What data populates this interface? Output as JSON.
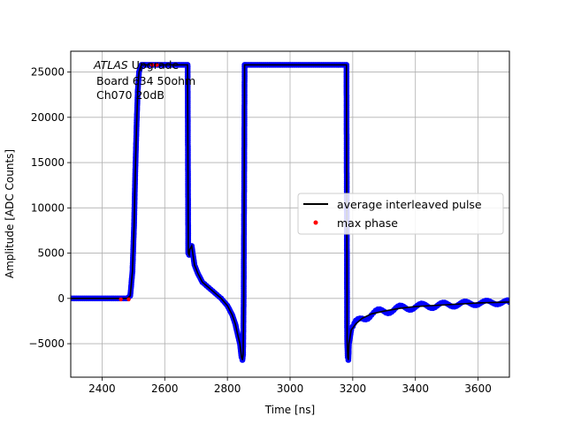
{
  "chart_data": {
    "type": "scatter",
    "title": "",
    "xlabel": "Time [ns]",
    "ylabel": "Amplitude [ADC Counts]",
    "xlim": [
      2300,
      3700
    ],
    "ylim": [
      -8700,
      27300
    ],
    "grid": true,
    "x_ticks": [
      2400,
      2600,
      2800,
      3000,
      3200,
      3400,
      3600
    ],
    "y_ticks": [
      -5000,
      0,
      5000,
      10000,
      15000,
      20000,
      25000
    ],
    "annotations": {
      "italic": "ATLAS",
      "after_italic": " Upgrade",
      "line2": "Board 634 50ohm",
      "line3": "Ch070 20dB"
    },
    "legend": {
      "placement": "center-right",
      "entries": [
        {
          "label": "average interleaved pulse",
          "marker": "line",
          "color": "#000000"
        },
        {
          "label": "max phase",
          "marker": "dot",
          "color": "#ff0000"
        }
      ]
    },
    "colors": {
      "scatter": "#0000ff",
      "line": "#000000",
      "max_phase": "#ff0000"
    },
    "series": [
      {
        "name": "average interleaved pulse",
        "kind": "line+scatter",
        "x": [
          2300,
          2480,
          2490,
          2497,
          2502,
          2506,
          2510,
          2514,
          2518,
          2522,
          2526,
          2530,
          2540,
          2600,
          2673,
          2675,
          2678,
          2680,
          2686,
          2695,
          2705,
          2720,
          2740,
          2760,
          2780,
          2800,
          2815,
          2825,
          2833,
          2840,
          2845,
          2848,
          2850,
          2852,
          2855,
          2860,
          3100,
          3180,
          3182,
          3184,
          3186,
          3188,
          3195,
          3210,
          3230,
          3260,
          3300,
          3350,
          3400,
          3450,
          3500,
          3550,
          3600,
          3650,
          3700
        ],
        "y": [
          0,
          0,
          300,
          3000,
          8000,
          14000,
          19000,
          23000,
          25000,
          25500,
          25800,
          25800,
          25800,
          25800,
          25800,
          5000,
          4800,
          5400,
          5800,
          3700,
          2800,
          1800,
          1200,
          600,
          0,
          -800,
          -1800,
          -2800,
          -4000,
          -5000,
          -6500,
          -6800,
          -6200,
          0,
          25800,
          25800,
          25800,
          25800,
          -4500,
          -6500,
          -6800,
          -5000,
          -3500,
          -2800,
          -2200,
          -1700,
          -1400,
          -1100,
          -900,
          -800,
          -700,
          -600,
          -500,
          -450,
          -400
        ]
      },
      {
        "name": "max phase",
        "kind": "scatter",
        "x": [
          2460,
          2485,
          2560,
          2575
        ],
        "y": [
          -100,
          -100,
          25800,
          25800
        ]
      }
    ]
  }
}
